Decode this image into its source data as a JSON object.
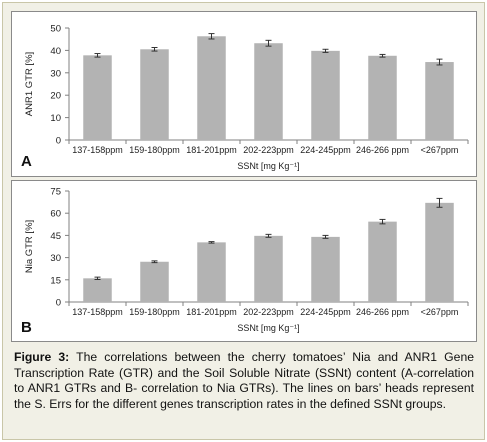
{
  "chart_data": [
    {
      "type": "bar",
      "panel_letter": "A",
      "categories": [
        "137-158ppm",
        "159-180ppm",
        "181-201ppm",
        "202-223ppm",
        "224-245ppm",
        "246-266 ppm",
        "<267ppm"
      ],
      "values": [
        37.8,
        40.5,
        46.3,
        43.2,
        39.8,
        37.6,
        34.8
      ],
      "errors": [
        0.8,
        0.8,
        1.2,
        1.3,
        0.7,
        0.6,
        1.3
      ],
      "ylabel": "ANR1 GTR [%]",
      "xlabel": "SSNt [mg Kg⁻¹]",
      "ylim": [
        0,
        50
      ],
      "yticks": [
        0,
        10,
        20,
        30,
        40,
        50
      ],
      "grid": false,
      "bar_color": "#b3b3b3"
    },
    {
      "type": "bar",
      "panel_letter": "B",
      "categories": [
        "137-158ppm",
        "159-180ppm",
        "181-201ppm",
        "202-223ppm",
        "224-245ppm",
        "246-266 ppm",
        "<267ppm"
      ],
      "values": [
        16.0,
        27.2,
        40.3,
        44.7,
        44.0,
        54.3,
        67.0
      ],
      "errors": [
        0.8,
        0.6,
        0.5,
        1.0,
        1.0,
        1.5,
        3.0
      ],
      "ylabel": "Nia GTR [%]",
      "xlabel": "SSNt [mg Kg⁻¹]",
      "ylim": [
        0,
        75
      ],
      "yticks": [
        0,
        15,
        30,
        45,
        60,
        75
      ],
      "grid": false,
      "bar_color": "#b3b3b3"
    }
  ],
  "caption": {
    "label": "Figure 3:",
    "text": " The correlations between the cherry tomatoes’ Nia and ANR1 Gene Transcription Rate (GTR) and the Soil Soluble Nitrate (SSNt) content (A-correlation to ANR1 GTRs and B- correlation to Nia GTRs). The lines on bars’ heads represent the S. Errs for the different genes transcription rates in the defined SSNt groups."
  }
}
